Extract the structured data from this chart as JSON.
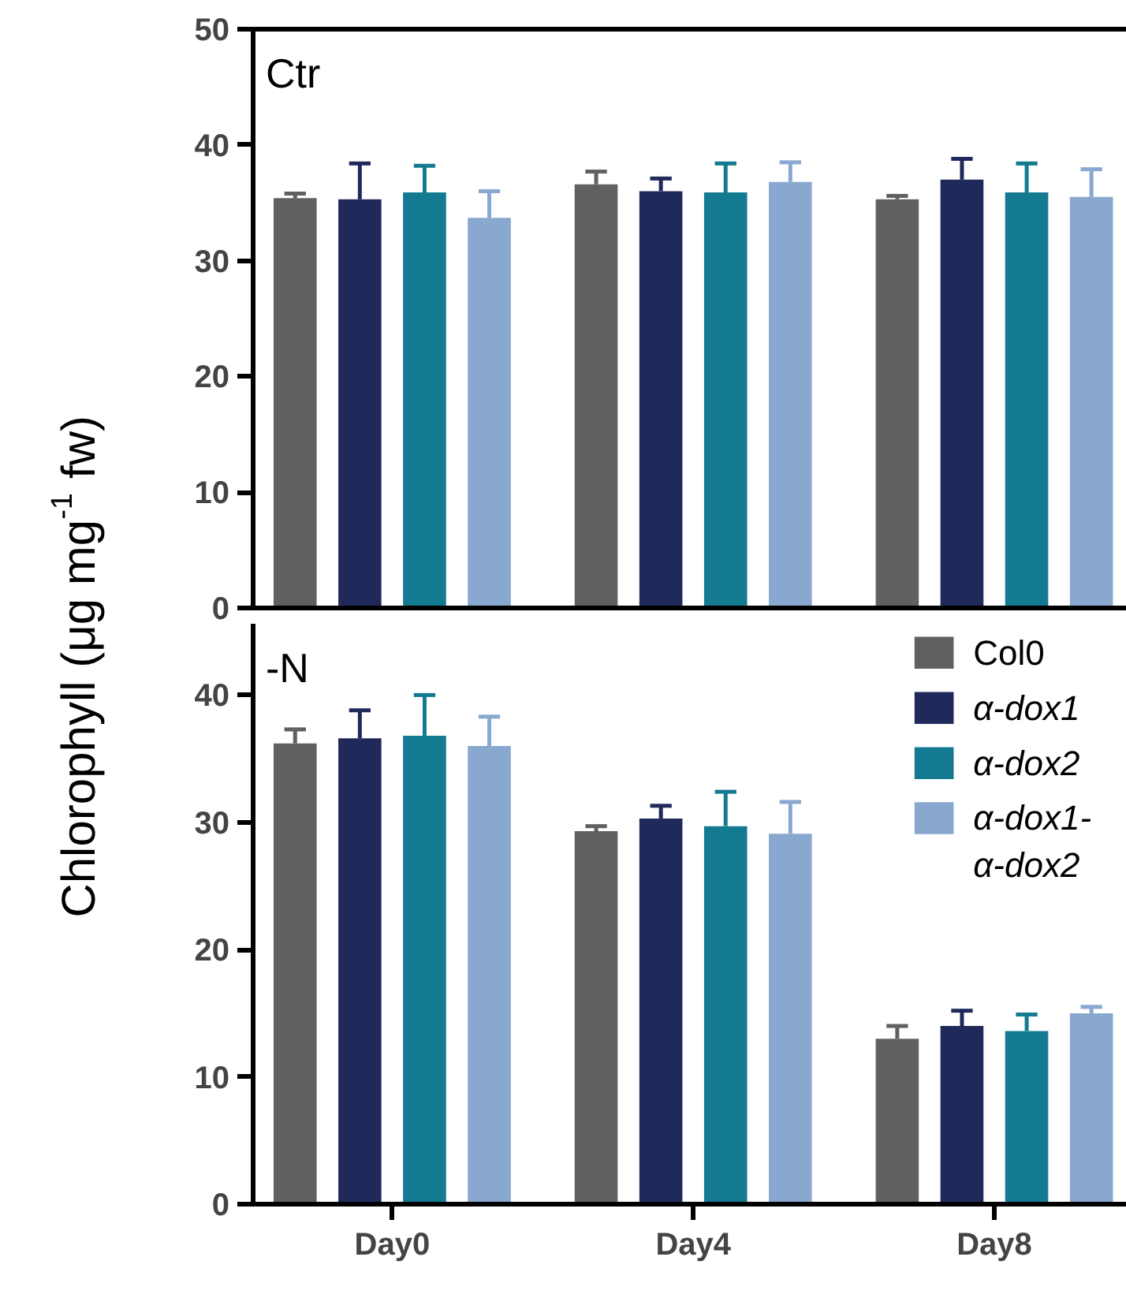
{
  "chart_data": [
    {
      "type": "bar",
      "ylabel": "Chlorophyll (μg mg$^{-1}$ fw)",
      "annotations": [
        "Ctr"
      ],
      "categories": [
        "Day0",
        "Day4",
        "Day8"
      ],
      "ylim": [
        0,
        50
      ],
      "yticks": [
        0,
        10,
        20,
        30,
        40,
        50
      ],
      "tick_labels": "y",
      "grid": false,
      "legend": false,
      "series": [
        {
          "color": "#606060",
          "values": [
            35.4,
            36.6,
            35.3
          ],
          "errors": [
            [
              35.4,
              35.8
            ],
            [
              36.6,
              37.7
            ],
            [
              35.3,
              35.6
            ]
          ]
        },
        {
          "color": "#1f2a5b",
          "values": [
            35.3,
            36.0,
            37.0
          ],
          "errors": [
            [
              35.3,
              38.4
            ],
            [
              36.0,
              37.1
            ],
            [
              37.0,
              38.8
            ]
          ]
        },
        {
          "color": "#137a92",
          "values": [
            35.9,
            35.9,
            35.9
          ],
          "errors": [
            [
              35.9,
              38.2
            ],
            [
              35.9,
              38.4
            ],
            [
              35.9,
              38.4
            ]
          ]
        },
        {
          "color": "#88a8d0",
          "values": [
            33.7,
            36.8,
            35.5
          ],
          "errors": [
            [
              33.7,
              36.0
            ],
            [
              36.8,
              38.5
            ],
            [
              35.5,
              37.9
            ]
          ]
        }
      ]
    },
    {
      "type": "bar",
      "annotations": [
        "-N"
      ],
      "categories": [
        "Day0",
        "Day4",
        "Day8"
      ],
      "ylim": [
        0,
        45.6
      ],
      "yticks": [
        0,
        10,
        20,
        30,
        40
      ],
      "grid": false,
      "legend": "top right",
      "series": [
        {
          "name": "Col0",
          "color": "#606060",
          "values": [
            36.2,
            29.3,
            13.0
          ],
          "errors": [
            [
              36.2,
              37.3
            ],
            [
              29.3,
              29.7
            ],
            [
              13.0,
              14.0
            ]
          ]
        },
        {
          "name": "α-dox1",
          "color": "#1f2a5b",
          "values": [
            36.6,
            30.3,
            14.0
          ],
          "errors": [
            [
              36.6,
              38.8
            ],
            [
              30.3,
              31.3
            ],
            [
              14.0,
              15.2
            ]
          ]
        },
        {
          "name": "α-dox2",
          "color": "#137a92",
          "values": [
            36.8,
            29.7,
            13.6
          ],
          "errors": [
            [
              36.8,
              40.0
            ],
            [
              29.7,
              32.4
            ],
            [
              13.6,
              14.9
            ]
          ]
        },
        {
          "name": "α-dox1-α-dox2",
          "color": "#88a8d0",
          "values": [
            36.0,
            29.1,
            15.0
          ],
          "errors": [
            [
              36.0,
              38.3
            ],
            [
              29.1,
              31.6
            ],
            [
              15.0,
              15.5
            ]
          ]
        }
      ]
    }
  ]
}
